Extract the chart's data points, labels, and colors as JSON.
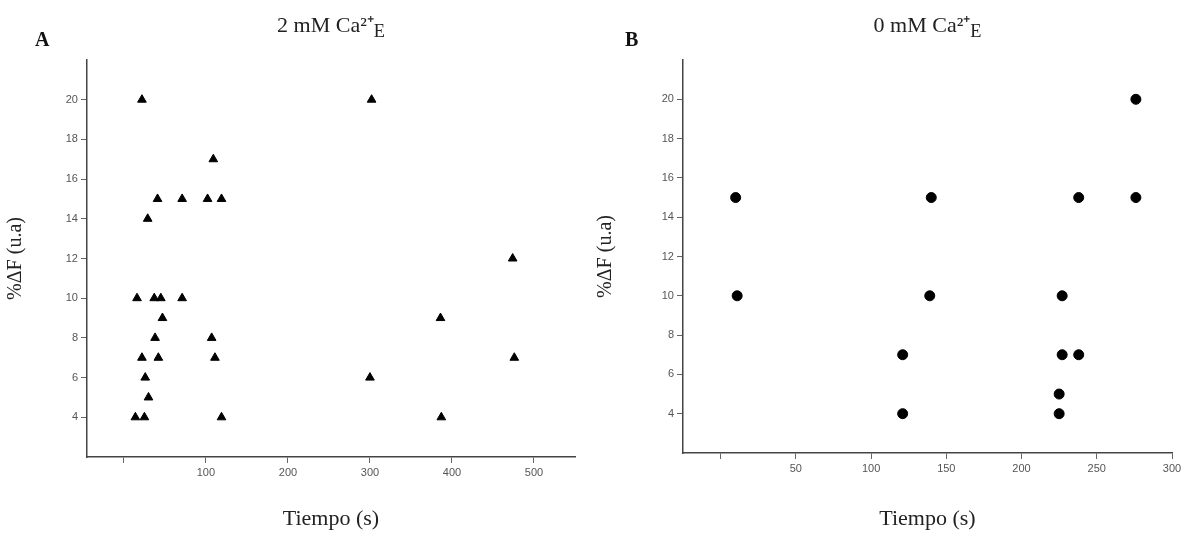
{
  "chart_data": [
    {
      "type": "scatter",
      "title": "2 mM Ca²⁺$_{E}$",
      "xlabel": "Tiempo (s)",
      "ylabel": "%ΔF (u.a)",
      "annotations": [
        "A"
      ],
      "marker": "triangle",
      "series": [
        {
          "color": "#000000",
          "x": [
            22,
            109,
            41,
            71,
            102,
            119,
            29,
            16,
            37,
            45,
            71,
            47,
            38,
            107,
            22,
            42,
            111,
            26,
            30,
            14,
            25,
            119,
            302,
            474,
            386,
            476,
            300,
            387
          ],
          "values": [
            20,
            17,
            15,
            15,
            15,
            15,
            14,
            10,
            10,
            10,
            10,
            9,
            8,
            8,
            7,
            7,
            7,
            6,
            5,
            4,
            4,
            4,
            20,
            12,
            9,
            7,
            6,
            4
          ]
        }
      ],
      "xlim": [
        -45,
        550
      ],
      "xticks": [
        {
          "value": 0,
          "label": null
        },
        100,
        200,
        300,
        400,
        500
      ],
      "ylim": [
        2,
        22
      ],
      "yticks": [
        4,
        6,
        8,
        10,
        12,
        14,
        16,
        18,
        20
      ]
    },
    {
      "type": "scatter",
      "title": "0 mM Ca²⁺$_{E}$",
      "xlabel": "Tiempo (s)",
      "ylabel": "%ΔF (u.a)",
      "annotations": [
        "B"
      ],
      "marker": "circle",
      "series": [
        {
          "color": "#000000",
          "x": [
            10,
            11,
            121,
            121,
            140,
            139,
            227,
            227,
            238,
            238,
            225,
            225,
            276,
            276
          ],
          "values": [
            15,
            10,
            7,
            4,
            15,
            10,
            10,
            7,
            7,
            15,
            5,
            4,
            20,
            15
          ]
        }
      ],
      "xlim": [
        -25,
        300
      ],
      "xticks": [
        {
          "value": 0,
          "label": null
        },
        50,
        100,
        150,
        200,
        250,
        300
      ],
      "ylim": [
        2,
        22
      ],
      "yticks": [
        4,
        6,
        8,
        10,
        12,
        14,
        16,
        18,
        20
      ]
    }
  ]
}
